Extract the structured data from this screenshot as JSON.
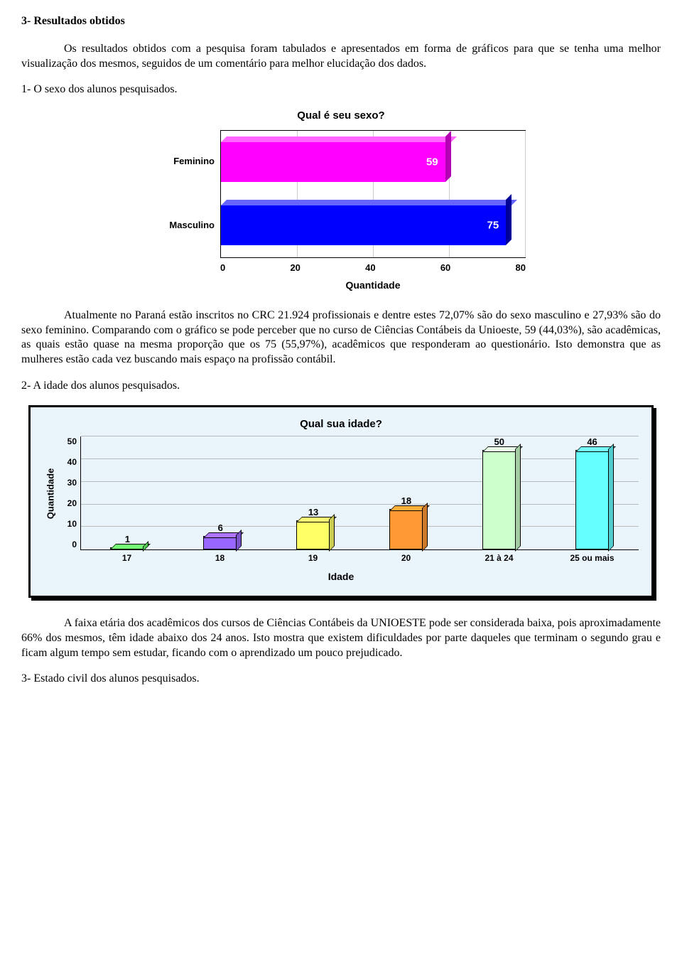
{
  "section_heading": "3- Resultados obtidos",
  "intro_para": "Os resultados obtidos com a pesquisa foram tabulados e apresentados em forma de gráficos para que se tenha uma melhor visualização dos mesmos, seguidos de um comentário para melhor elucidação dos dados.",
  "sub1_heading": "1- O sexo dos alunos pesquisados.",
  "chart1": {
    "type": "bar-horizontal-3d",
    "title": "Qual é seu sexo?",
    "xlabel": "Quantidade",
    "xmax": 80,
    "xticks": [
      "0",
      "20",
      "40",
      "60",
      "80"
    ],
    "categories": [
      "Feminino",
      "Masculino"
    ],
    "values": [
      59,
      75
    ],
    "bar_colors": [
      "#ff00ff",
      "#0000ff"
    ],
    "bar_top_colors": [
      "#ff66ff",
      "#6666ff"
    ],
    "bar_side_colors": [
      "#b300b3",
      "#000099"
    ],
    "value_label_color": "#ffffff",
    "grid_color": "#cccccc",
    "title_fontsize": 15,
    "label_fontsize": 13
  },
  "para_after_chart1": "Atualmente no Paraná estão inscritos no CRC 21.924 profissionais e dentre estes 72,07% são do sexo masculino e 27,93% são do sexo feminino. Comparando com o gráfico se pode perceber que no curso de Ciências Contábeis da Unioeste, 59 (44,03%), são acadêmicas, as quais  estão quase na mesma proporção que os 75 (55,97%), acadêmicos que responderam ao questionário. Isto demonstra que as mulheres estão cada vez buscando mais espaço na profissão contábil.",
  "sub2_heading": "2- A idade dos alunos pesquisados.",
  "chart2": {
    "type": "bar-vertical-3d",
    "title": "Qual sua idade?",
    "ylabel": "Quantidade",
    "xlabel": "Idade",
    "ymax": 50,
    "yticks": [
      "0",
      "10",
      "20",
      "30",
      "40",
      "50"
    ],
    "categories": [
      "17",
      "18",
      "19",
      "20",
      "21 à 24",
      "25 ou mais"
    ],
    "values": [
      1,
      6,
      13,
      18,
      50,
      46
    ],
    "bar_colors": [
      "#66ff66",
      "#9966ff",
      "#ffff66",
      "#ff9933",
      "#ccffcc",
      "#66ffff"
    ],
    "panel_bg": "#eaf4fb",
    "border_color": "#000000",
    "grid_color": "#bbbbbb",
    "title_fontsize": 15,
    "label_fontsize": 13
  },
  "para_after_chart2": "A faixa etária dos acadêmicos dos cursos de Ciências Contábeis da UNIOESTE pode ser considerada baixa, pois aproximadamente 66% dos mesmos, têm idade abaixo dos 24 anos. Isto mostra que existem dificuldades por parte daqueles que terminam o segundo grau e ficam algum tempo sem estudar, ficando com o aprendizado um pouco prejudicado.",
  "sub3_heading": "3- Estado civil dos alunos pesquisados."
}
